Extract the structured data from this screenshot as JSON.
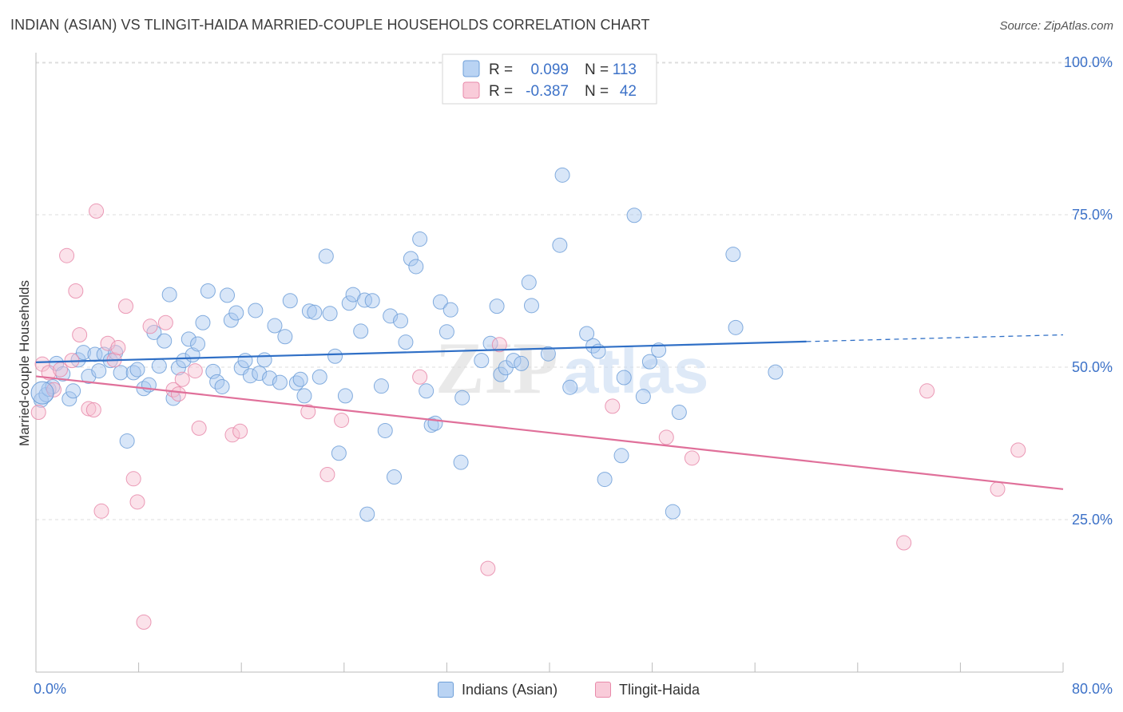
{
  "title": "INDIAN (ASIAN) VS TLINGIT-HAIDA MARRIED-COUPLE HOUSEHOLDS CORRELATION CHART",
  "source": "Source: ZipAtlas.com",
  "watermark": {
    "zip": "ZIP",
    "atlas": "atlas"
  },
  "colors": {
    "blue_fill": "#a9c8f0",
    "blue_stroke": "#6e9fd8",
    "blue_line": "#2f6fc6",
    "pink_fill": "#f7bfd0",
    "pink_stroke": "#e88aaa",
    "pink_line": "#e0709a",
    "tick_text": "#3d72c8",
    "grid": "#dddddd"
  },
  "stats_legend": [
    {
      "r_label": "R =",
      "r_value": "0.099",
      "n_label": "N =",
      "n_value": "113",
      "color": "blue"
    },
    {
      "r_label": "R =",
      "r_value": "-0.387",
      "n_label": "N =",
      "n_value": "42",
      "color": "pink"
    }
  ],
  "chart_data": {
    "type": "scatter",
    "title": "INDIAN (ASIAN) VS TLINGIT-HAIDA MARRIED-COUPLE HOUSEHOLDS CORRELATION CHART",
    "xlabel": "",
    "ylabel": "Married-couple Households",
    "xlim": [
      0,
      80
    ],
    "ylim": [
      0,
      104
    ],
    "x_tick_labels": [
      "0.0%",
      "80.0%"
    ],
    "y_ticks": [
      25,
      50,
      75,
      100
    ],
    "y_tick_labels": [
      "25.0%",
      "50.0%",
      "75.0%",
      "100.0%"
    ],
    "grid": true,
    "legend_position": "bottom",
    "series": [
      {
        "name": "Indians (Asian)",
        "color": "blue",
        "trend": {
          "x": [
            0,
            60
          ],
          "y": [
            50.8,
            54.2
          ],
          "dashed_to_x": 80,
          "dashed_to_y": 55.3
        },
        "points": [
          [
            0.4,
            44.6
          ],
          [
            0.8,
            45.5
          ],
          [
            1.0,
            46.4
          ],
          [
            1.3,
            46.8
          ],
          [
            1.6,
            50.6
          ],
          [
            2.1,
            48.9
          ],
          [
            2.6,
            44.8
          ],
          [
            2.9,
            46.1
          ],
          [
            3.3,
            51.2
          ],
          [
            3.7,
            52.4
          ],
          [
            4.1,
            48.5
          ],
          [
            4.6,
            52.1
          ],
          [
            4.9,
            49.4
          ],
          [
            5.3,
            52.1
          ],
          [
            5.8,
            51.1
          ],
          [
            6.2,
            52.4
          ],
          [
            6.6,
            49.1
          ],
          [
            7.1,
            37.9
          ],
          [
            7.6,
            49.1
          ],
          [
            7.9,
            49.6
          ],
          [
            8.4,
            46.5
          ],
          [
            8.8,
            47.1
          ],
          [
            9.2,
            55.7
          ],
          [
            9.6,
            50.2
          ],
          [
            10.0,
            54.3
          ],
          [
            10.4,
            61.9
          ],
          [
            10.7,
            44.9
          ],
          [
            11.1,
            49.9
          ],
          [
            11.5,
            51.1
          ],
          [
            11.9,
            54.6
          ],
          [
            12.2,
            52.0
          ],
          [
            12.6,
            53.8
          ],
          [
            13.0,
            57.3
          ],
          [
            13.4,
            62.5
          ],
          [
            13.8,
            49.3
          ],
          [
            14.1,
            47.6
          ],
          [
            14.5,
            46.8
          ],
          [
            14.9,
            61.8
          ],
          [
            15.2,
            57.7
          ],
          [
            15.6,
            58.9
          ],
          [
            16.0,
            49.9
          ],
          [
            16.3,
            51.1
          ],
          [
            16.7,
            48.6
          ],
          [
            17.1,
            59.3
          ],
          [
            17.4,
            49.0
          ],
          [
            17.8,
            51.2
          ],
          [
            18.2,
            48.2
          ],
          [
            18.6,
            56.8
          ],
          [
            19.0,
            47.5
          ],
          [
            19.4,
            55.0
          ],
          [
            19.8,
            60.9
          ],
          [
            20.3,
            47.4
          ],
          [
            20.6,
            48.0
          ],
          [
            20.9,
            45.3
          ],
          [
            21.3,
            59.2
          ],
          [
            21.7,
            59.0
          ],
          [
            22.1,
            48.4
          ],
          [
            22.6,
            68.2
          ],
          [
            22.9,
            58.8
          ],
          [
            23.3,
            51.8
          ],
          [
            23.6,
            35.9
          ],
          [
            24.1,
            45.3
          ],
          [
            24.4,
            60.5
          ],
          [
            24.7,
            61.9
          ],
          [
            25.3,
            55.9
          ],
          [
            25.6,
            61.0
          ],
          [
            26.2,
            60.9
          ],
          [
            26.9,
            46.9
          ],
          [
            27.2,
            39.6
          ],
          [
            27.6,
            58.4
          ],
          [
            27.9,
            32.0
          ],
          [
            28.4,
            57.6
          ],
          [
            28.8,
            54.1
          ],
          [
            29.2,
            67.8
          ],
          [
            29.6,
            66.5
          ],
          [
            29.9,
            71.0
          ],
          [
            30.4,
            46.1
          ],
          [
            30.8,
            40.5
          ],
          [
            31.1,
            40.8
          ],
          [
            31.5,
            60.7
          ],
          [
            32.0,
            55.8
          ],
          [
            32.3,
            59.4
          ],
          [
            33.1,
            34.4
          ],
          [
            33.2,
            45.0
          ],
          [
            34.7,
            51.1
          ],
          [
            35.4,
            53.9
          ],
          [
            35.9,
            60.0
          ],
          [
            36.2,
            48.8
          ],
          [
            36.6,
            49.9
          ],
          [
            37.2,
            51.1
          ],
          [
            37.8,
            50.6
          ],
          [
            38.4,
            63.9
          ],
          [
            38.6,
            60.1
          ],
          [
            39.9,
            52.2
          ],
          [
            40.8,
            70.0
          ],
          [
            41.0,
            81.5
          ],
          [
            41.6,
            46.7
          ],
          [
            42.9,
            55.5
          ],
          [
            43.4,
            53.5
          ],
          [
            43.8,
            52.6
          ],
          [
            44.3,
            31.6
          ],
          [
            45.6,
            35.5
          ],
          [
            45.8,
            48.3
          ],
          [
            46.6,
            74.9
          ],
          [
            47.3,
            45.2
          ],
          [
            47.8,
            50.9
          ],
          [
            48.5,
            52.8
          ],
          [
            49.6,
            26.3
          ],
          [
            50.1,
            42.6
          ],
          [
            54.3,
            68.5
          ],
          [
            54.5,
            56.5
          ],
          [
            57.6,
            49.2
          ],
          [
            25.8,
            25.9
          ]
        ]
      },
      {
        "name": "Tlingit-Haida",
        "color": "pink",
        "trend": {
          "x": [
            0,
            80
          ],
          "y": [
            48.5,
            30.0
          ]
        },
        "points": [
          [
            0.2,
            42.6
          ],
          [
            0.5,
            50.5
          ],
          [
            1.0,
            49.1
          ],
          [
            1.4,
            46.3
          ],
          [
            1.9,
            49.6
          ],
          [
            2.4,
            68.3
          ],
          [
            2.8,
            51.1
          ],
          [
            3.1,
            62.5
          ],
          [
            3.4,
            55.3
          ],
          [
            4.1,
            43.2
          ],
          [
            4.5,
            43.0
          ],
          [
            4.7,
            75.6
          ],
          [
            5.1,
            26.4
          ],
          [
            5.6,
            53.9
          ],
          [
            6.1,
            51.2
          ],
          [
            6.4,
            53.2
          ],
          [
            7.0,
            60.0
          ],
          [
            7.6,
            31.7
          ],
          [
            7.9,
            27.9
          ],
          [
            8.4,
            8.2
          ],
          [
            8.9,
            56.7
          ],
          [
            10.1,
            57.3
          ],
          [
            10.7,
            46.3
          ],
          [
            11.1,
            45.6
          ],
          [
            11.4,
            48.0
          ],
          [
            12.4,
            49.4
          ],
          [
            12.7,
            40.0
          ],
          [
            15.3,
            38.9
          ],
          [
            15.9,
            39.5
          ],
          [
            21.2,
            42.7
          ],
          [
            22.7,
            32.4
          ],
          [
            23.8,
            41.3
          ],
          [
            29.9,
            48.4
          ],
          [
            35.2,
            17.0
          ],
          [
            36.1,
            53.7
          ],
          [
            44.9,
            43.6
          ],
          [
            49.1,
            38.5
          ],
          [
            51.1,
            35.1
          ],
          [
            67.6,
            21.2
          ],
          [
            69.4,
            46.1
          ],
          [
            74.9,
            30.0
          ],
          [
            76.5,
            36.4
          ]
        ]
      }
    ]
  },
  "bottom_legend": [
    {
      "label": "Indians (Asian)",
      "color": "blue"
    },
    {
      "label": "Tlingit-Haida",
      "color": "pink"
    }
  ]
}
